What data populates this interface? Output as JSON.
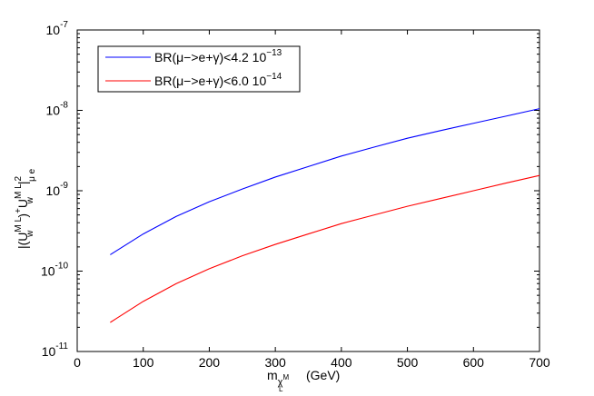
{
  "chart_data": {
    "type": "line",
    "title": "",
    "x_scale": "linear",
    "y_scale": "log",
    "xlim": [
      0,
      700
    ],
    "ylim": [
      1e-11,
      1e-07
    ],
    "xticks": [
      0,
      100,
      200,
      300,
      400,
      500,
      600,
      700
    ],
    "xtick_labels": [
      "0",
      "100",
      "200",
      "300",
      "400",
      "500",
      "600",
      "700"
    ],
    "yticks": [
      1e-11,
      1e-10,
      1e-09,
      1e-08,
      1e-07
    ],
    "ytick_labels": [
      {
        "base": "10",
        "exp": "-11"
      },
      {
        "base": "10",
        "exp": "-10"
      },
      {
        "base": "10",
        "exp": "-9"
      },
      {
        "base": "10",
        "exp": "-8"
      },
      {
        "base": "10",
        "exp": "-7"
      }
    ],
    "xlabel": {
      "main": "m",
      "sub": "χ",
      "sub_sup": "M",
      "sub_sub": "L",
      "unit": "(GeV)"
    },
    "ylabel": {
      "text": "|(U",
      "p1_sup": "M L",
      "p1_sub": "w",
      "mid": ")",
      "p2_sup": "+",
      "p2_base": "U",
      "p3_sup": "M L",
      "p3_sub": "w",
      "end_sub": "μ e",
      "bar": "|",
      "sq": "2"
    },
    "grid": false,
    "legend_position": "top-left",
    "series": [
      {
        "name": "BR(μ−>e+γ)<4.2 10",
        "name_exp": "−13",
        "color": "#0000ff",
        "x": [
          50,
          100,
          150,
          200,
          250,
          300,
          350,
          400,
          450,
          500,
          550,
          600,
          650,
          700
        ],
        "y": [
          1.6e-10,
          2.9e-10,
          4.8e-10,
          7.3e-10,
          1.05e-09,
          1.48e-09,
          2e-09,
          2.7e-09,
          3.5e-09,
          4.5e-09,
          5.6e-09,
          6.9e-09,
          8.5e-09,
          1.05e-08
        ]
      },
      {
        "name": "BR(μ−>e+γ)<6.0 10",
        "name_exp": "−14",
        "color": "#ff0000",
        "x": [
          50,
          100,
          150,
          200,
          250,
          300,
          350,
          400,
          450,
          500,
          550,
          600,
          650,
          700
        ],
        "y": [
          2.3e-11,
          4.2e-11,
          7e-11,
          1.07e-10,
          1.55e-10,
          2.15e-10,
          2.9e-10,
          3.9e-10,
          5e-10,
          6.4e-10,
          8e-10,
          1e-09,
          1.25e-09,
          1.55e-09
        ]
      }
    ]
  }
}
